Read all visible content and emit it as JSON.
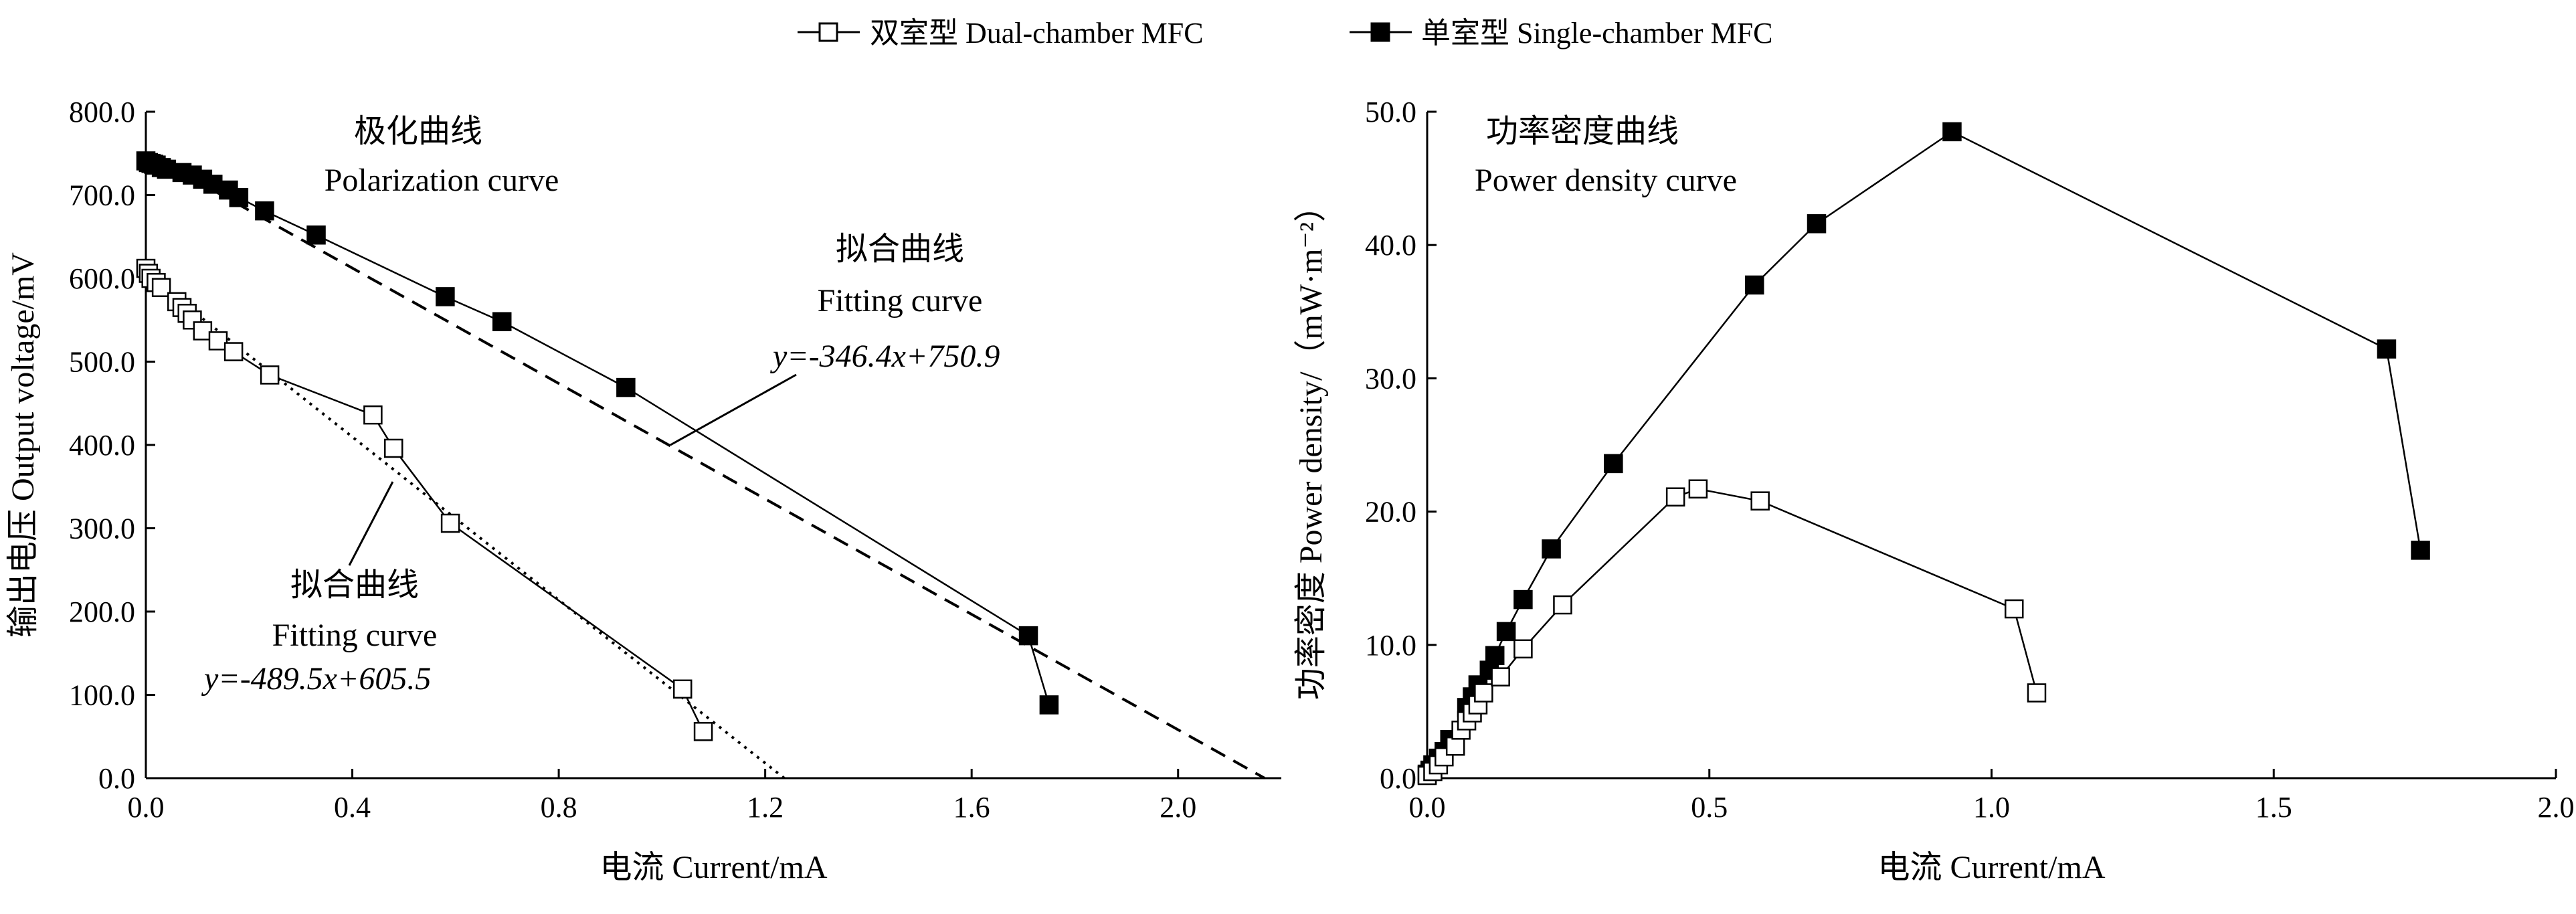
{
  "legend": {
    "dual_label": "双室型 Dual-chamber MFC",
    "single_label": "单室型 Single-chamber MFC"
  },
  "chart_data": [
    {
      "type": "line",
      "title_cn": "极化曲线",
      "title_en": "Polarization curve",
      "xlabel": "电流 Current/mA",
      "ylabel": "输出电压 Output voltage/mV",
      "xlim": [
        0,
        2.2
      ],
      "ylim": [
        0,
        800
      ],
      "xticks": [
        0.0,
        0.4,
        0.8,
        1.2,
        1.6,
        2.0
      ],
      "xtick_labels": [
        "0.0",
        "0.4",
        "0.8",
        "1.2",
        "1.6",
        "2.0"
      ],
      "yticks": [
        0,
        100,
        200,
        300,
        400,
        500,
        600,
        700,
        800
      ],
      "ytick_labels": [
        "0.0",
        "100.0",
        "200.0",
        "300.0",
        "400.0",
        "500.0",
        "600.0",
        "700.0",
        "800.0"
      ],
      "series": [
        {
          "name": "单室型 Single-chamber MFC",
          "marker": "filled-square",
          "x": [
            0.0,
            0.005,
            0.01,
            0.015,
            0.02,
            0.03,
            0.04,
            0.07,
            0.09,
            0.11,
            0.13,
            0.16,
            0.18,
            0.23,
            0.33,
            0.58,
            0.69,
            0.93,
            1.71,
            1.75
          ],
          "y": [
            741,
            739,
            738,
            737,
            736,
            733,
            731,
            727,
            724,
            719,
            713,
            706,
            697,
            681,
            652,
            578,
            548,
            469,
            171,
            88
          ]
        },
        {
          "name": "双室型 Dual-chamber MFC",
          "marker": "open-square",
          "x": [
            0.0,
            0.005,
            0.01,
            0.02,
            0.03,
            0.06,
            0.07,
            0.08,
            0.09,
            0.11,
            0.14,
            0.17,
            0.24,
            0.44,
            0.48,
            0.59,
            1.04,
            1.08
          ],
          "y": [
            612,
            606,
            600,
            595,
            589,
            572,
            565,
            558,
            550,
            537,
            525,
            512,
            484,
            436,
            396,
            306,
            107,
            56
          ]
        }
      ],
      "fits": [
        {
          "name": "single-fit",
          "label_cn": "拟合曲线",
          "label_en": "Fitting curve",
          "equation": "y=-346.4x+750.9",
          "slope": -346.4,
          "intercept": 750.9,
          "style": "dashed"
        },
        {
          "name": "dual-fit",
          "label_cn": "拟合曲线",
          "label_en": "Fitting curve",
          "equation": "y=-489.5x+605.5",
          "slope": -489.5,
          "intercept": 605.5,
          "style": "dotted"
        }
      ]
    },
    {
      "type": "line",
      "title_cn": "功率密度曲线",
      "title_en": "Power density curve",
      "xlabel": "电流 Current/mA",
      "ylabel": "功率密度 Power density/（mW·m⁻²）",
      "xlim": [
        0,
        2.0
      ],
      "ylim": [
        0,
        50
      ],
      "xticks": [
        0.0,
        0.5,
        1.0,
        1.5,
        2.0
      ],
      "xtick_labels": [
        "0.0",
        "0.5",
        "1.0",
        "1.5",
        "2.0"
      ],
      "yticks": [
        0,
        10,
        20,
        30,
        40,
        50
      ],
      "ytick_labels": [
        "0.0",
        "10.0",
        "20.0",
        "30.0",
        "40.0",
        "50.0"
      ],
      "series": [
        {
          "name": "单室型 Single-chamber MFC",
          "marker": "filled-square",
          "x": [
            0.0,
            0.005,
            0.01,
            0.02,
            0.03,
            0.04,
            0.07,
            0.08,
            0.09,
            0.11,
            0.12,
            0.14,
            0.17,
            0.22,
            0.33,
            0.58,
            0.69,
            0.93,
            1.7,
            1.76
          ],
          "y": [
            0.3,
            0.6,
            1.0,
            1.5,
            2.0,
            2.9,
            5.3,
            6.1,
            7.0,
            8.1,
            9.2,
            11.0,
            13.4,
            17.2,
            23.6,
            37.0,
            41.6,
            48.5,
            32.2,
            17.1
          ]
        },
        {
          "name": "双室型 Dual-chamber MFC",
          "marker": "open-square",
          "x": [
            0.0,
            0.01,
            0.02,
            0.03,
            0.05,
            0.06,
            0.07,
            0.08,
            0.09,
            0.1,
            0.13,
            0.17,
            0.24,
            0.44,
            0.48,
            0.59,
            1.04,
            1.08
          ],
          "y": [
            0.2,
            0.5,
            1.0,
            1.6,
            2.4,
            3.6,
            4.3,
            4.9,
            5.5,
            6.4,
            7.6,
            9.7,
            13.0,
            21.1,
            21.7,
            20.8,
            12.7,
            6.4
          ]
        }
      ]
    }
  ]
}
